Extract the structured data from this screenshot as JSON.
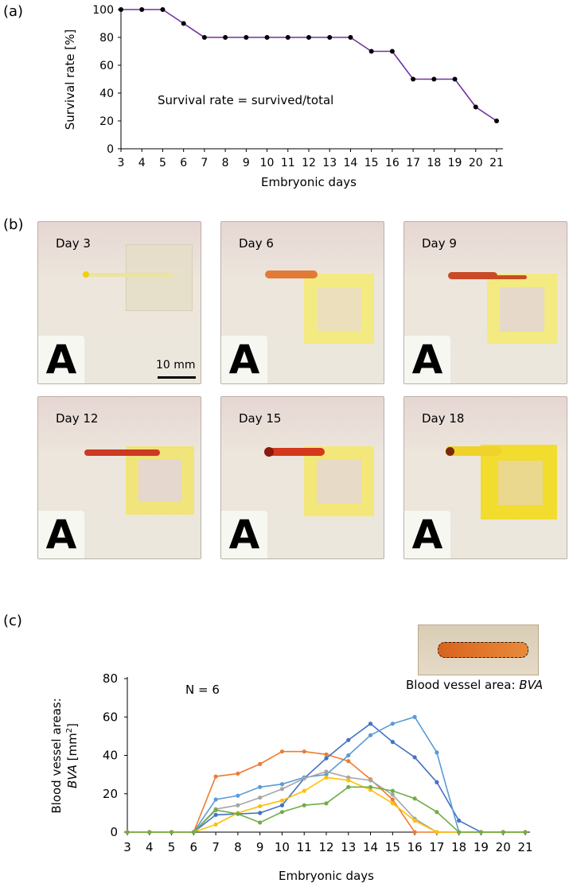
{
  "panel_labels": {
    "a": "(a)",
    "b": "(b)",
    "c": "(c)"
  },
  "colors": {
    "survival_line": "#7030a0",
    "marker": "#000000"
  },
  "chart_data": [
    {
      "type": "line",
      "panel": "(a)",
      "xlabel": "Embryonic days",
      "ylabel": "Survival rate [%]",
      "ylim": [
        0,
        100
      ],
      "yticks": [
        0,
        20,
        40,
        60,
        80,
        100
      ],
      "xticks": [
        3,
        4,
        5,
        6,
        7,
        8,
        9,
        10,
        11,
        12,
        13,
        14,
        15,
        16,
        17,
        18,
        19,
        20,
        21
      ],
      "annotation": "Survival rate = survived/total",
      "series": [
        {
          "x": [
            3,
            4,
            5,
            6,
            7,
            8,
            9,
            10,
            11,
            12,
            13,
            14,
            15,
            16,
            17,
            18,
            19,
            20,
            21
          ],
          "values": [
            100,
            100,
            100,
            90,
            80,
            80,
            80,
            80,
            80,
            80,
            80,
            80,
            70,
            70,
            50,
            50,
            50,
            30,
            20
          ],
          "color": "#7030a0"
        }
      ]
    },
    {
      "type": "line",
      "panel": "(c)",
      "xlabel": "Embryonic days",
      "ylabel_line1": "Blood vessel areas:",
      "ylabel_line2_italic": "BVA",
      "ylabel_line2_unit": " [mm",
      "ylabel_line2_sup": "2",
      "ylabel_line2_end": "]",
      "ylim": [
        0,
        80
      ],
      "yticks": [
        0,
        20,
        40,
        60,
        80
      ],
      "xticks": [
        3,
        4,
        5,
        6,
        7,
        8,
        9,
        10,
        11,
        12,
        13,
        14,
        15,
        16,
        17,
        18,
        19,
        20,
        21
      ],
      "annotation": "N = 6",
      "series": [
        {
          "color": "#ed7d31",
          "x": [
            3,
            4,
            5,
            6,
            7,
            8,
            9,
            10,
            11,
            12,
            13,
            14,
            15,
            16,
            17,
            18,
            19,
            20,
            21
          ],
          "values": [
            0,
            0,
            0,
            0,
            29,
            30.5,
            35.5,
            42,
            42,
            40.5,
            37,
            27.5,
            17,
            0,
            0,
            0,
            0,
            0,
            0
          ]
        },
        {
          "color": "#4472c4",
          "x": [
            3,
            4,
            5,
            6,
            7,
            8,
            9,
            10,
            11,
            12,
            13,
            14,
            15,
            16,
            17,
            18,
            19,
            20,
            21
          ],
          "values": [
            0,
            0,
            0,
            0,
            9,
            9.5,
            10,
            14,
            28,
            38.5,
            48,
            56.5,
            47,
            39,
            26,
            6,
            0,
            0,
            0
          ]
        },
        {
          "color": "#5b9bd5",
          "x": [
            3,
            4,
            5,
            6,
            7,
            8,
            9,
            10,
            11,
            12,
            13,
            14,
            15,
            16,
            17,
            18,
            19,
            20,
            21
          ],
          "values": [
            0,
            0,
            0,
            0,
            17,
            19,
            23.5,
            25,
            28.5,
            30,
            40,
            50.5,
            56.5,
            60,
            41.5,
            0,
            0,
            0,
            0
          ]
        },
        {
          "color": "#a5a5a5",
          "x": [
            3,
            4,
            5,
            6,
            7,
            8,
            9,
            10,
            11,
            12,
            13,
            14,
            15,
            16,
            17,
            18,
            19,
            20,
            21
          ],
          "values": [
            0,
            0,
            0,
            0,
            12,
            14,
            18,
            22.5,
            28,
            31.5,
            28.5,
            27,
            19.5,
            7,
            0,
            0,
            0,
            0,
            0
          ]
        },
        {
          "color": "#ffc000",
          "x": [
            3,
            4,
            5,
            6,
            7,
            8,
            9,
            10,
            11,
            12,
            13,
            14,
            15,
            16,
            17,
            18,
            19,
            20,
            21
          ],
          "values": [
            0,
            0,
            0,
            0,
            4,
            10,
            13.5,
            16.5,
            21.5,
            28.5,
            27,
            22,
            15,
            6,
            0,
            0,
            0,
            0,
            0
          ]
        },
        {
          "color": "#70ad47",
          "x": [
            3,
            4,
            5,
            6,
            7,
            8,
            9,
            10,
            11,
            12,
            13,
            14,
            15,
            16,
            17,
            18,
            19,
            20,
            21
          ],
          "values": [
            0,
            0,
            0,
            0,
            11.5,
            9.5,
            5,
            10.5,
            14,
            15,
            23.5,
            23.5,
            21.5,
            17.5,
            10.5,
            0,
            0,
            0,
            0
          ]
        }
      ]
    }
  ],
  "photos": [
    {
      "day": "Day 3",
      "letter": "A",
      "stage": "yellow-dot"
    },
    {
      "day": "Day 6",
      "letter": "A",
      "stage": "orange-vessel"
    },
    {
      "day": "Day 9",
      "letter": "A",
      "stage": "red-vessel"
    },
    {
      "day": "Day 12",
      "letter": "A",
      "stage": "red-vessel"
    },
    {
      "day": "Day 15",
      "letter": "A",
      "stage": "red-vessel"
    },
    {
      "day": "Day 18",
      "letter": "A",
      "stage": "dark-dot"
    }
  ],
  "scale_bar": "10 mm",
  "inset_caption_prefix": "Blood vessel area: ",
  "inset_caption_italic": "BVA"
}
